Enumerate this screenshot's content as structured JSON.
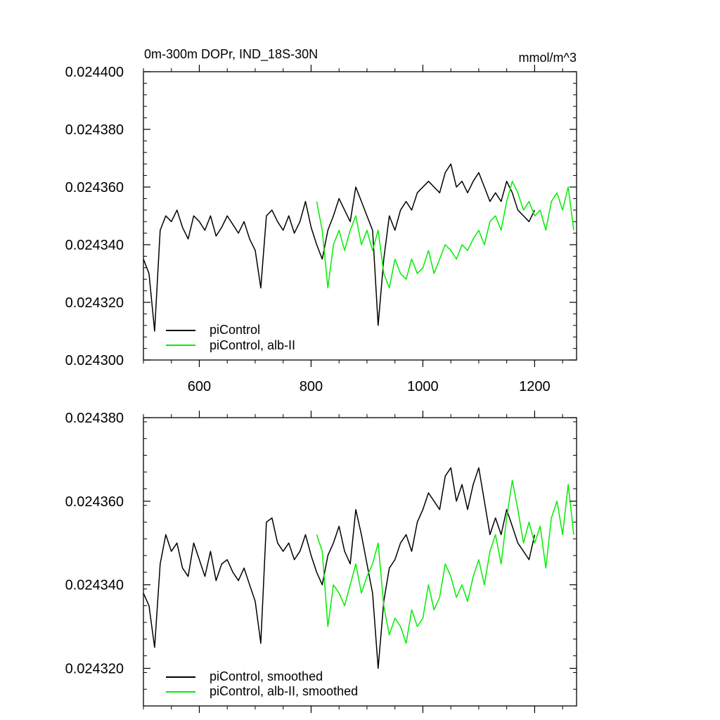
{
  "chart_data": [
    {
      "type": "line",
      "title": "0m-300m DOPr, IND_18S-30N",
      "units": "mmol/m^3",
      "xlim": [
        500,
        1275
      ],
      "ylim": [
        0.0243,
        0.0244
      ],
      "x_ticks": [
        600,
        800,
        1000,
        1200
      ],
      "x_tick_labels": [
        "600",
        "800",
        "1000",
        "1200"
      ],
      "y_ticks": [
        0.0243,
        0.02432,
        0.02434,
        0.02436,
        0.02438,
        0.0244
      ],
      "y_tick_labels": [
        "0.024300",
        "0.024320",
        "0.024340",
        "0.024360",
        "0.024380",
        "0.024400"
      ],
      "legend_position": "bottom-left",
      "series": [
        {
          "name": "piControl",
          "color": "#000000",
          "x": [
            500,
            510,
            520,
            530,
            540,
            550,
            560,
            570,
            580,
            590,
            600,
            610,
            620,
            630,
            640,
            650,
            660,
            670,
            680,
            690,
            700,
            710,
            720,
            730,
            740,
            750,
            760,
            770,
            780,
            790,
            800,
            810,
            820,
            830,
            840,
            850,
            860,
            870,
            880,
            890,
            900,
            910,
            920,
            930,
            940,
            950,
            960,
            970,
            980,
            990,
            1000,
            1010,
            1020,
            1030,
            1040,
            1050,
            1060,
            1070,
            1080,
            1090,
            1100,
            1110,
            1120,
            1130,
            1140,
            1150,
            1160,
            1170,
            1180,
            1190,
            1200
          ],
          "y": [
            0.024335,
            0.02433,
            0.02431,
            0.024345,
            0.02435,
            0.024348,
            0.024352,
            0.024346,
            0.024342,
            0.02435,
            0.024348,
            0.024345,
            0.02435,
            0.024343,
            0.024346,
            0.02435,
            0.024347,
            0.024344,
            0.024348,
            0.024342,
            0.024338,
            0.024325,
            0.02435,
            0.024352,
            0.024348,
            0.024345,
            0.02435,
            0.024344,
            0.024348,
            0.024355,
            0.024346,
            0.02434,
            0.024335,
            0.024345,
            0.02435,
            0.024356,
            0.024352,
            0.024348,
            0.02436,
            0.024355,
            0.02435,
            0.024345,
            0.024312,
            0.024335,
            0.02435,
            0.024345,
            0.024352,
            0.024355,
            0.024352,
            0.024358,
            0.02436,
            0.024362,
            0.02436,
            0.024358,
            0.024365,
            0.024368,
            0.02436,
            0.024362,
            0.024358,
            0.024362,
            0.024365,
            0.02436,
            0.024355,
            0.024358,
            0.024355,
            0.024362,
            0.024358,
            0.024352,
            0.02435,
            0.024348,
            0.024352
          ]
        },
        {
          "name": "piControl, alb-II",
          "color": "#00ee00",
          "x": [
            810,
            820,
            830,
            840,
            850,
            860,
            870,
            880,
            890,
            900,
            910,
            920,
            930,
            940,
            950,
            960,
            970,
            980,
            990,
            1000,
            1010,
            1020,
            1030,
            1040,
            1050,
            1060,
            1070,
            1080,
            1090,
            1100,
            1110,
            1120,
            1130,
            1140,
            1150,
            1160,
            1170,
            1180,
            1190,
            1200,
            1210,
            1220,
            1230,
            1240,
            1250,
            1260,
            1270
          ],
          "y": [
            0.024355,
            0.024345,
            0.024325,
            0.02434,
            0.024345,
            0.024338,
            0.024345,
            0.02435,
            0.02434,
            0.024345,
            0.024338,
            0.024345,
            0.02433,
            0.024325,
            0.024335,
            0.02433,
            0.024328,
            0.024335,
            0.02433,
            0.024332,
            0.024338,
            0.02433,
            0.024335,
            0.02434,
            0.024338,
            0.024335,
            0.02434,
            0.024338,
            0.024342,
            0.024345,
            0.02434,
            0.024348,
            0.02435,
            0.024345,
            0.024355,
            0.024362,
            0.024358,
            0.024352,
            0.024355,
            0.02435,
            0.024352,
            0.024345,
            0.024355,
            0.024358,
            0.024352,
            0.02436,
            0.024345
          ]
        }
      ]
    },
    {
      "type": "line",
      "xlim": [
        500,
        1275
      ],
      "ylim": [
        0.024311,
        0.02438
      ],
      "x_ticks": [
        600,
        800,
        1000,
        1200
      ],
      "y_ticks": [
        0.02432,
        0.02434,
        0.02436,
        0.02438
      ],
      "y_tick_labels": [
        "0.024320",
        "0.024340",
        "0.024360",
        "0.024380"
      ],
      "legend_position": "bottom-left",
      "series": [
        {
          "name": "piControl, smoothed",
          "color": "#000000",
          "x": [
            500,
            510,
            520,
            530,
            540,
            550,
            560,
            570,
            580,
            590,
            600,
            610,
            620,
            630,
            640,
            650,
            660,
            670,
            680,
            690,
            700,
            710,
            720,
            730,
            740,
            750,
            760,
            770,
            780,
            790,
            800,
            810,
            820,
            830,
            840,
            850,
            860,
            870,
            880,
            890,
            900,
            910,
            920,
            930,
            940,
            950,
            960,
            970,
            980,
            990,
            1000,
            1010,
            1020,
            1030,
            1040,
            1050,
            1060,
            1070,
            1080,
            1090,
            1100,
            1110,
            1120,
            1130,
            1140,
            1150,
            1160,
            1170,
            1180,
            1190,
            1200
          ],
          "y": [
            0.024338,
            0.024335,
            0.024325,
            0.024345,
            0.024352,
            0.024348,
            0.02435,
            0.024344,
            0.024342,
            0.02435,
            0.024346,
            0.024342,
            0.024348,
            0.024341,
            0.024345,
            0.024346,
            0.024343,
            0.024341,
            0.024344,
            0.02434,
            0.024336,
            0.024326,
            0.024355,
            0.024356,
            0.02435,
            0.024348,
            0.02435,
            0.024346,
            0.024348,
            0.024352,
            0.024347,
            0.024343,
            0.02434,
            0.024347,
            0.02435,
            0.024354,
            0.024348,
            0.024345,
            0.024358,
            0.024352,
            0.024345,
            0.024338,
            0.02432,
            0.024336,
            0.024344,
            0.024346,
            0.02435,
            0.024352,
            0.024348,
            0.024355,
            0.024358,
            0.024362,
            0.02436,
            0.024358,
            0.024366,
            0.024368,
            0.02436,
            0.024364,
            0.024358,
            0.024364,
            0.024368,
            0.02436,
            0.024352,
            0.024356,
            0.024352,
            0.024358,
            0.024354,
            0.02435,
            0.024348,
            0.024346,
            0.024352
          ]
        },
        {
          "name": "piControl, alb-II, smoothed",
          "color": "#00ee00",
          "x": [
            810,
            820,
            830,
            840,
            850,
            860,
            870,
            880,
            890,
            900,
            910,
            920,
            930,
            940,
            950,
            960,
            970,
            980,
            990,
            1000,
            1010,
            1020,
            1030,
            1040,
            1050,
            1060,
            1070,
            1080,
            1090,
            1100,
            1110,
            1120,
            1130,
            1140,
            1150,
            1160,
            1170,
            1180,
            1190,
            1200,
            1210,
            1220,
            1230,
            1240,
            1250,
            1260,
            1270
          ],
          "y": [
            0.024352,
            0.024348,
            0.02433,
            0.02434,
            0.024338,
            0.024335,
            0.02434,
            0.024345,
            0.024338,
            0.024342,
            0.024345,
            0.02435,
            0.024335,
            0.024328,
            0.024332,
            0.02433,
            0.024326,
            0.024334,
            0.02433,
            0.024332,
            0.02434,
            0.024334,
            0.024337,
            0.024345,
            0.024342,
            0.024337,
            0.02434,
            0.024336,
            0.024342,
            0.024346,
            0.02434,
            0.024348,
            0.024352,
            0.024345,
            0.024356,
            0.024365,
            0.024358,
            0.02435,
            0.024355,
            0.02435,
            0.024354,
            0.024344,
            0.024356,
            0.02436,
            0.024352,
            0.024364,
            0.024352
          ]
        }
      ]
    }
  ]
}
